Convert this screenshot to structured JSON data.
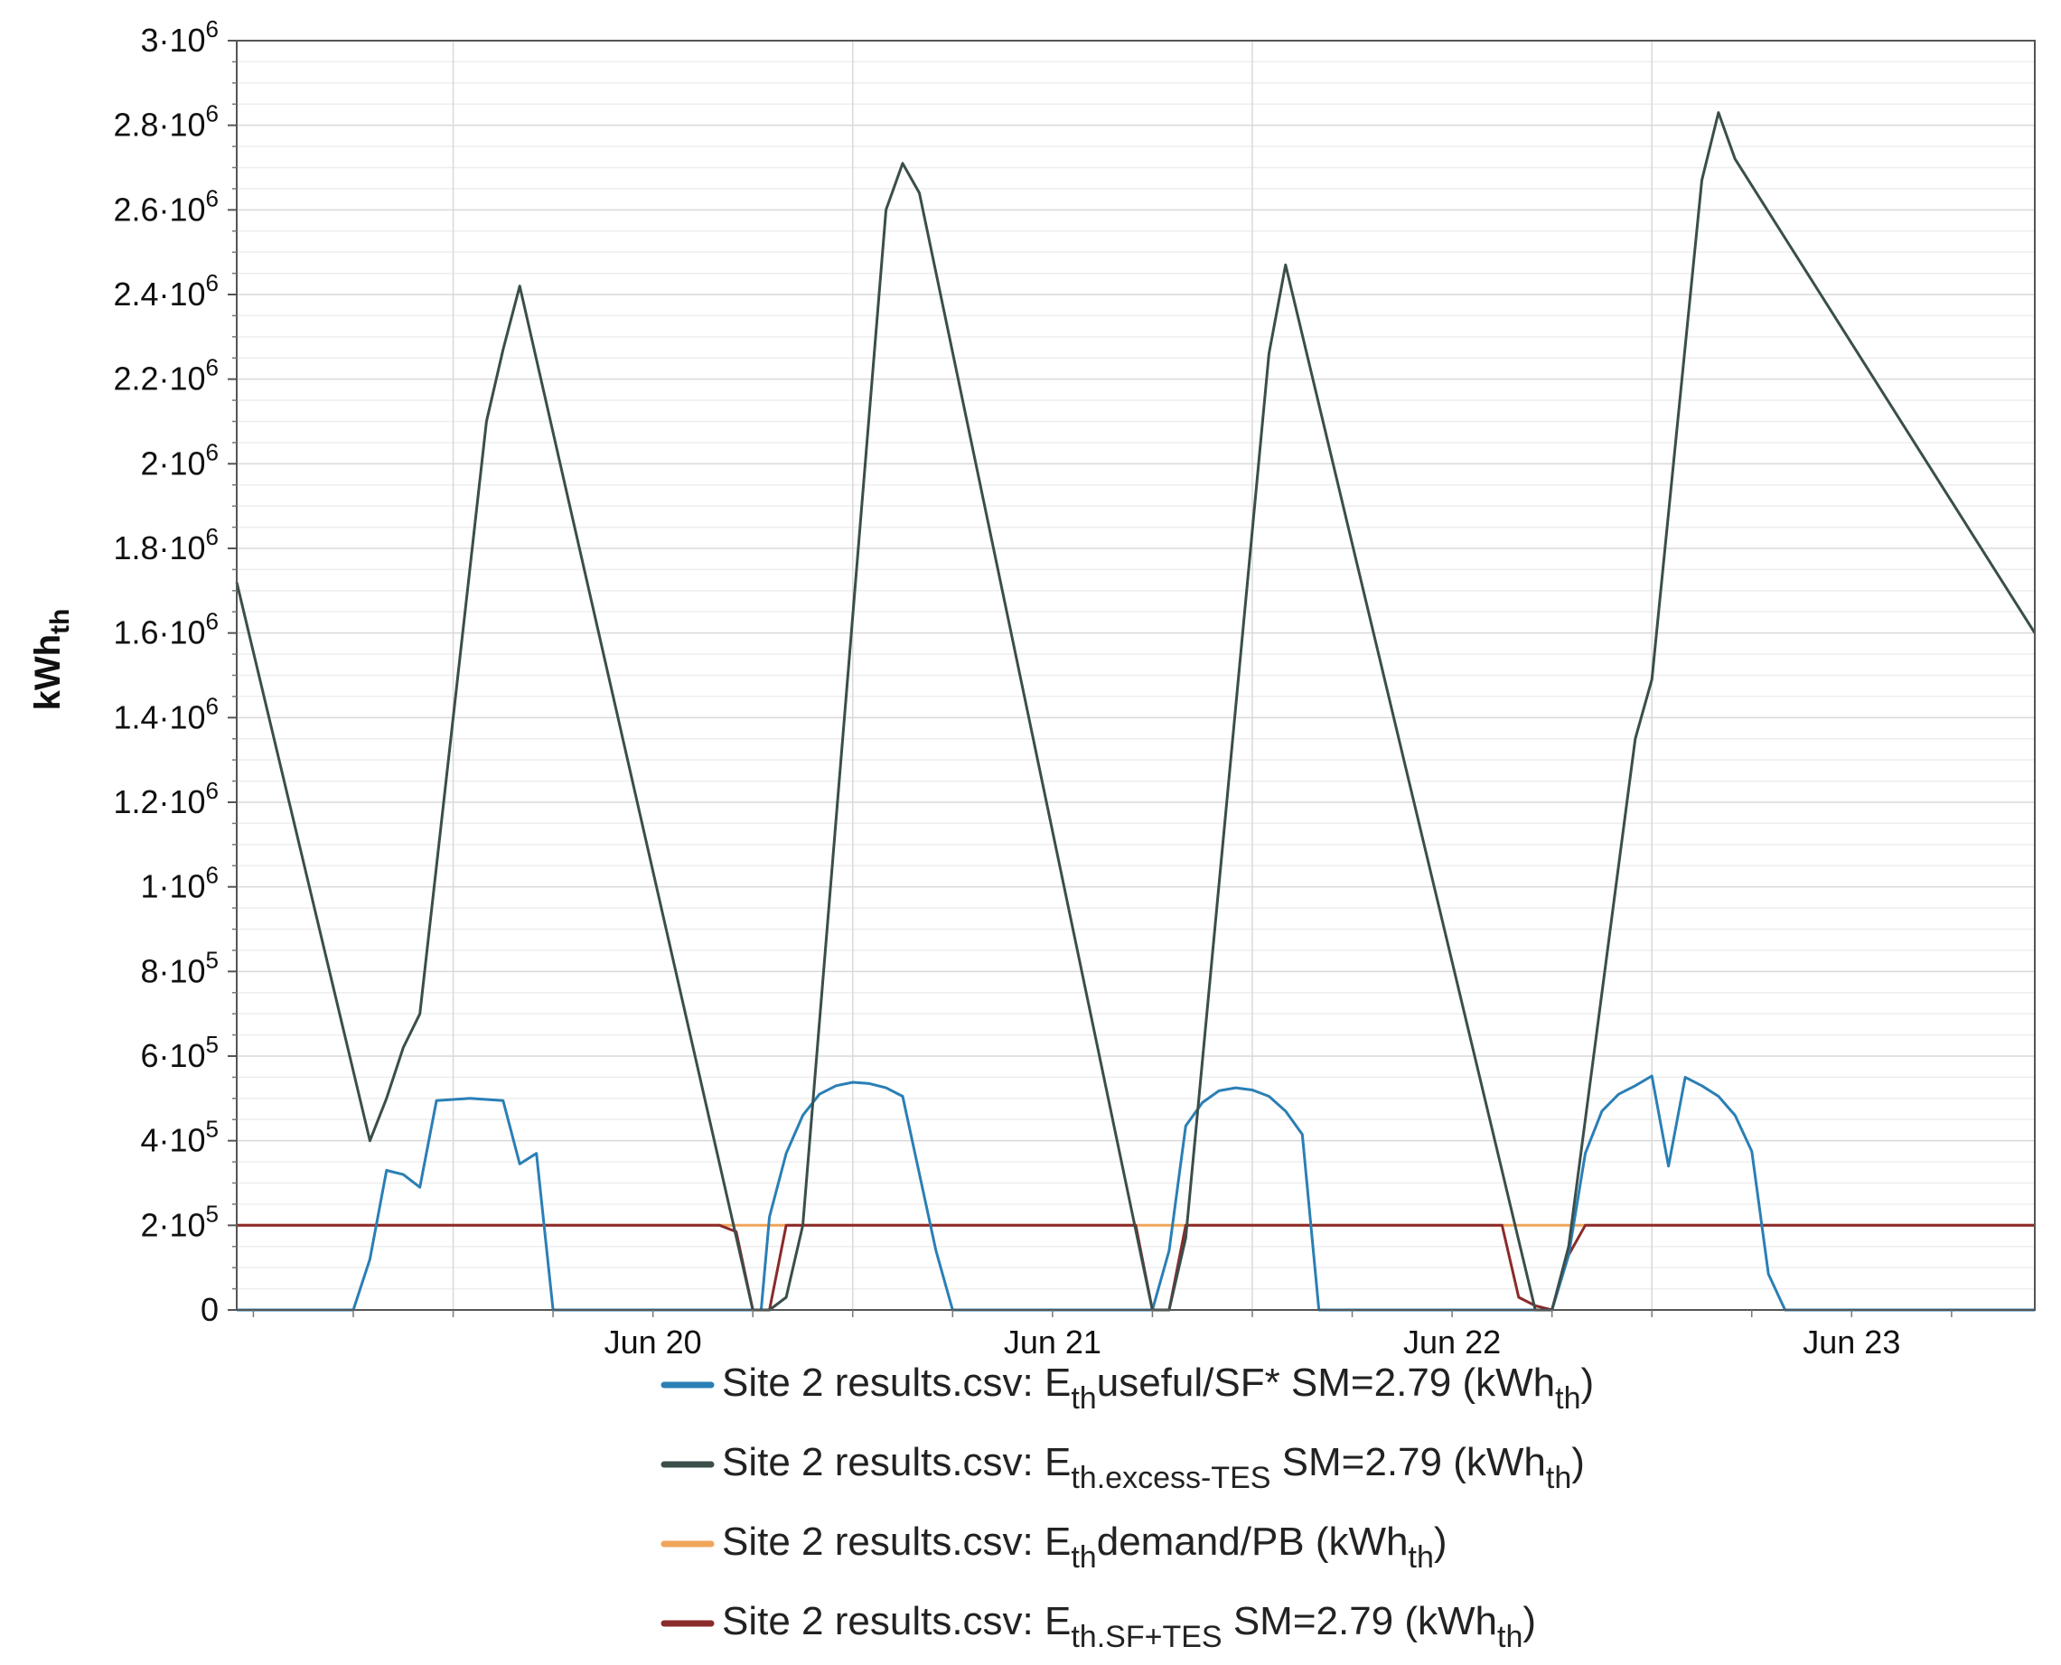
{
  "chart_data": {
    "type": "line",
    "xlabel": "",
    "ylabel_main": "kWh",
    "ylabel_sub": "th",
    "y_ticks": [
      {
        "value": 0,
        "mant": "0",
        "exp": ""
      },
      {
        "value": 200000,
        "mant": "2·10",
        "exp": "5"
      },
      {
        "value": 400000,
        "mant": "4·10",
        "exp": "5"
      },
      {
        "value": 600000,
        "mant": "6·10",
        "exp": "5"
      },
      {
        "value": 800000,
        "mant": "8·10",
        "exp": "5"
      },
      {
        "value": 1000000,
        "mant": "1·10",
        "exp": "6"
      },
      {
        "value": 1200000,
        "mant": "1.2·10",
        "exp": "6"
      },
      {
        "value": 1400000,
        "mant": "1.4·10",
        "exp": "6"
      },
      {
        "value": 1600000,
        "mant": "1.6·10",
        "exp": "6"
      },
      {
        "value": 1800000,
        "mant": "1.8·10",
        "exp": "6"
      },
      {
        "value": 2000000,
        "mant": "2·10",
        "exp": "6"
      },
      {
        "value": 2200000,
        "mant": "2.2·10",
        "exp": "6"
      },
      {
        "value": 2400000,
        "mant": "2.4·10",
        "exp": "6"
      },
      {
        "value": 2600000,
        "mant": "2.6·10",
        "exp": "6"
      },
      {
        "value": 2800000,
        "mant": "2.8·10",
        "exp": "6"
      },
      {
        "value": 3000000,
        "mant": "3·10",
        "exp": "6"
      }
    ],
    "ylim": [
      0,
      3000000
    ],
    "xlim": [
      "2019-06-19T11:00",
      "2019-06-23T23:00"
    ],
    "x_ticks": [
      {
        "label": "Jun 20",
        "at": "2019-06-20T12:00"
      },
      {
        "label": "Jun 21",
        "at": "2019-06-21T12:00"
      },
      {
        "label": "Jun 22",
        "at": "2019-06-22T12:00"
      },
      {
        "label": "Jun 23",
        "at": "2019-06-23T12:00"
      }
    ],
    "x_grid": [
      "2019-06-20T00:00",
      "2019-06-21T00:00",
      "2019-06-22T00:00",
      "2019-06-23T00:00"
    ],
    "grid": true,
    "legend_position": "bottom",
    "series": [
      {
        "name": "Site 2 results.csv: Ethuseful/SF*  SM=2.79 (kWhth)",
        "legend_parts": [
          {
            "t": "Site 2 results.csv: E",
            "s": ""
          },
          {
            "t": "th",
            "s": "sub"
          },
          {
            "t": "useful/SF*  SM=2.79 (kWh",
            "s": ""
          },
          {
            "t": "th",
            "s": "sub"
          },
          {
            "t": ")",
            "s": ""
          }
        ],
        "color": "#2a7fb5",
        "points": [
          [
            "2019-06-19T11:00",
            0
          ],
          [
            "2019-06-19T18:00",
            0
          ],
          [
            "2019-06-19T19:00",
            120000
          ],
          [
            "2019-06-19T20:00",
            330000
          ],
          [
            "2019-06-19T21:00",
            320000
          ],
          [
            "2019-06-19T22:00",
            290000
          ],
          [
            "2019-06-19T23:00",
            495000
          ],
          [
            "2019-06-20T01:00",
            500000
          ],
          [
            "2019-06-20T03:00",
            495000
          ],
          [
            "2019-06-20T04:00",
            345000
          ],
          [
            "2019-06-20T05:00",
            370000
          ],
          [
            "2019-06-20T06:00",
            0
          ],
          [
            "2019-06-20T18:30",
            0
          ],
          [
            "2019-06-20T19:00",
            220000
          ],
          [
            "2019-06-20T20:00",
            370000
          ],
          [
            "2019-06-20T21:00",
            460000
          ],
          [
            "2019-06-20T22:00",
            510000
          ],
          [
            "2019-06-20T23:00",
            530000
          ],
          [
            "2019-06-21T00:00",
            538000
          ],
          [
            "2019-06-21T01:00",
            535000
          ],
          [
            "2019-06-21T02:00",
            525000
          ],
          [
            "2019-06-21T03:00",
            505000
          ],
          [
            "2019-06-21T05:00",
            140000
          ],
          [
            "2019-06-21T06:00",
            0
          ],
          [
            "2019-06-21T18:00",
            0
          ],
          [
            "2019-06-21T19:00",
            140000
          ],
          [
            "2019-06-21T20:00",
            435000
          ],
          [
            "2019-06-21T21:00",
            490000
          ],
          [
            "2019-06-21T22:00",
            518000
          ],
          [
            "2019-06-21T23:00",
            525000
          ],
          [
            "2019-06-22T00:00",
            520000
          ],
          [
            "2019-06-22T01:00",
            505000
          ],
          [
            "2019-06-22T02:00",
            470000
          ],
          [
            "2019-06-22T03:00",
            415000
          ],
          [
            "2019-06-22T04:00",
            0
          ],
          [
            "2019-06-22T18:00",
            0
          ],
          [
            "2019-06-22T19:00",
            130000
          ],
          [
            "2019-06-22T20:00",
            370000
          ],
          [
            "2019-06-22T21:00",
            470000
          ],
          [
            "2019-06-22T22:00",
            510000
          ],
          [
            "2019-06-22T23:00",
            530000
          ],
          [
            "2019-06-23T00:00",
            553000
          ],
          [
            "2019-06-23T01:00",
            340000
          ],
          [
            "2019-06-23T02:00",
            550000
          ],
          [
            "2019-06-23T03:00",
            530000
          ],
          [
            "2019-06-23T04:00",
            505000
          ],
          [
            "2019-06-23T05:00",
            460000
          ],
          [
            "2019-06-23T06:00",
            375000
          ],
          [
            "2019-06-23T07:00",
            85000
          ],
          [
            "2019-06-23T08:00",
            0
          ],
          [
            "2019-06-23T23:00",
            0
          ]
        ]
      },
      {
        "name": "Site 2 results.csv: Eth.excess-TES SM=2.79 (kWhth)",
        "legend_parts": [
          {
            "t": "Site 2 results.csv: E",
            "s": ""
          },
          {
            "t": "th.excess-TES",
            "s": "sub"
          },
          {
            "t": " SM=2.79 (kWh",
            "s": ""
          },
          {
            "t": "th",
            "s": "sub"
          },
          {
            "t": ")",
            "s": ""
          }
        ],
        "color": "#3a4e4a",
        "points": [
          [
            "2019-06-19T11:00",
            1720000
          ],
          [
            "2019-06-19T19:00",
            400000
          ],
          [
            "2019-06-19T20:00",
            500000
          ],
          [
            "2019-06-19T21:00",
            620000
          ],
          [
            "2019-06-19T22:00",
            700000
          ],
          [
            "2019-06-20T02:00",
            2100000
          ],
          [
            "2019-06-20T03:00",
            2270000
          ],
          [
            "2019-06-20T04:00",
            2420000
          ],
          [
            "2019-06-20T18:00",
            0
          ],
          [
            "2019-06-20T19:00",
            0
          ],
          [
            "2019-06-20T20:00",
            30000
          ],
          [
            "2019-06-20T21:00",
            200000
          ],
          [
            "2019-06-21T02:00",
            2600000
          ],
          [
            "2019-06-21T03:00",
            2710000
          ],
          [
            "2019-06-21T04:00",
            2640000
          ],
          [
            "2019-06-21T18:00",
            0
          ],
          [
            "2019-06-21T19:00",
            0
          ],
          [
            "2019-06-21T20:00",
            170000
          ],
          [
            "2019-06-22T01:00",
            2260000
          ],
          [
            "2019-06-22T02:00",
            2470000
          ],
          [
            "2019-06-22T17:00",
            0
          ],
          [
            "2019-06-22T18:00",
            0
          ],
          [
            "2019-06-22T19:00",
            150000
          ],
          [
            "2019-06-22T23:00",
            1350000
          ],
          [
            "2019-06-23T00:00",
            1490000
          ],
          [
            "2019-06-23T03:00",
            2670000
          ],
          [
            "2019-06-23T04:00",
            2830000
          ],
          [
            "2019-06-23T05:00",
            2720000
          ],
          [
            "2019-06-23T23:00",
            1600000
          ]
        ]
      },
      {
        "name": "Site 2 results.csv: Ethdemand/PB (kWhth)",
        "legend_parts": [
          {
            "t": "Site 2 results.csv: E",
            "s": ""
          },
          {
            "t": "th",
            "s": "sub"
          },
          {
            "t": "demand/PB (kWh",
            "s": ""
          },
          {
            "t": "th",
            "s": "sub"
          },
          {
            "t": ")",
            "s": ""
          }
        ],
        "color": "#f0a55a",
        "points": [
          [
            "2019-06-19T11:00",
            200000
          ],
          [
            "2019-06-23T23:00",
            200000
          ]
        ]
      },
      {
        "name": "Site 2 results.csv: Eth.SF+TES SM=2.79 (kWhth)",
        "legend_parts": [
          {
            "t": "Site 2 results.csv: E",
            "s": ""
          },
          {
            "t": "th.SF+TES",
            "s": "sub"
          },
          {
            "t": " SM=2.79 (kWh",
            "s": ""
          },
          {
            "t": "th",
            "s": "sub"
          },
          {
            "t": ")",
            "s": ""
          }
        ],
        "color": "#8b2a2a",
        "points": [
          [
            "2019-06-19T11:00",
            200000
          ],
          [
            "2019-06-20T16:00",
            200000
          ],
          [
            "2019-06-20T17:00",
            185000
          ],
          [
            "2019-06-20T18:00",
            0
          ],
          [
            "2019-06-20T19:00",
            0
          ],
          [
            "2019-06-20T20:00",
            200000
          ],
          [
            "2019-06-21T17:00",
            200000
          ],
          [
            "2019-06-21T18:00",
            0
          ],
          [
            "2019-06-21T19:00",
            0
          ],
          [
            "2019-06-21T20:00",
            200000
          ],
          [
            "2019-06-22T15:00",
            200000
          ],
          [
            "2019-06-22T16:00",
            30000
          ],
          [
            "2019-06-22T17:00",
            10000
          ],
          [
            "2019-06-22T18:00",
            0
          ],
          [
            "2019-06-22T19:00",
            130000
          ],
          [
            "2019-06-22T20:00",
            200000
          ],
          [
            "2019-06-23T23:00",
            200000
          ]
        ]
      }
    ]
  }
}
